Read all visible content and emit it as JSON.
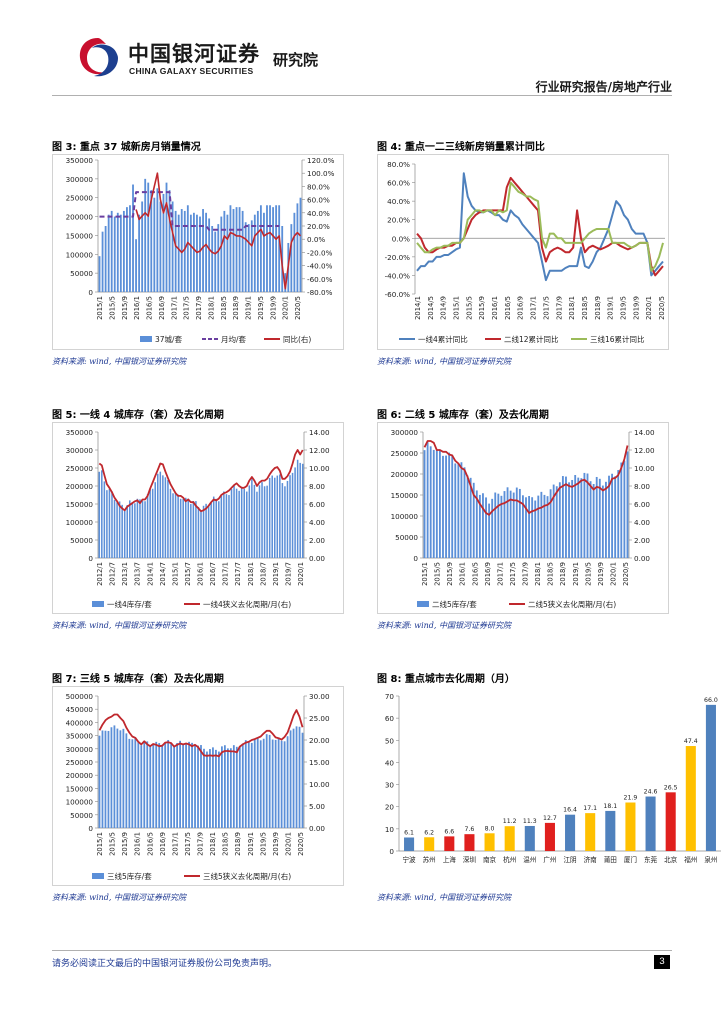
{
  "header": {
    "logo_cn": "中国银河证券",
    "logo_en": "CHINA GALAXY SECURITIES",
    "institute": "研究院",
    "report_type": "行业研究报告/房地产行业"
  },
  "figures": {
    "fig3": {
      "title": "图 3: 重点 37 城新房月销量情况",
      "source": "资料来源: wind, 中国银河证券研究院"
    },
    "fig4": {
      "title": "图 4: 重点一二三线新房销量累计同比",
      "source": "资料来源: wind, 中国银河证券研究院"
    },
    "fig5": {
      "title": "图 5: 一线 4 城库存（套）及去化周期",
      "source": "资料来源: wind, 中国银河证券研究院"
    },
    "fig6": {
      "title": "图 6: 二线 5 城库存（套）及去化周期",
      "source": "资料来源: wind, 中国银河证券研究院"
    },
    "fig7": {
      "title": "图 7: 三线 5 城库存（套）及去化周期",
      "source": "资料来源: wind, 中国银河证券研究院"
    },
    "fig8": {
      "title": "图 8: 重点城市去化周期（月）",
      "source": "资料来源: wind, 中国银河证券研究院"
    }
  },
  "footer": {
    "disclaimer": "请务必阅读正文最后的中国银河证券股份公司免责声明。",
    "page_number": "3"
  },
  "colors": {
    "bar_blue": "#5b8fd8",
    "line_red": "#c0282d",
    "purple": "#6a3fa0",
    "green": "#9bbb59",
    "yellow": "#ffc000",
    "red": "#e0201e",
    "mid_blue": "#4f81bd"
  },
  "chart_data": [
    {
      "id": "fig3",
      "type": "bar+line",
      "categories_label": [
        "2015/1",
        "2015/5",
        "2015/9",
        "2016/1",
        "2016/5",
        "2016/9",
        "2017/1",
        "2017/5",
        "2017/9",
        "2018/1",
        "2018/5",
        "2018/9",
        "2019/1",
        "2019/5",
        "2019/9",
        "2020/1",
        "2020/5"
      ],
      "y_left": {
        "ticks": [
          "0",
          "50000",
          "100000",
          "150000",
          "200000",
          "250000",
          "300000",
          "350000"
        ],
        "range": [
          0,
          350000
        ]
      },
      "y_right": {
        "ticks": [
          "-80.0%",
          "-60.0%",
          "-40.0%",
          "-20.0%",
          "0.0%",
          "20.0%",
          "40.0%",
          "60.0%",
          "80.0%",
          "100.0%",
          "120.0%"
        ],
        "range": [
          -80,
          120
        ]
      },
      "series": [
        {
          "name": "37城/套",
          "kind": "bar",
          "axis": "left",
          "values": [
            95000,
            160000,
            175000,
            205000,
            215000,
            200000,
            210000,
            205000,
            215000,
            225000,
            230000,
            285000,
            140000,
            205000,
            240000,
            300000,
            290000,
            270000,
            250000,
            275000,
            240000,
            260000,
            290000,
            270000,
            240000,
            215000,
            205000,
            220000,
            215000,
            230000,
            205000,
            210000,
            205000,
            200000,
            220000,
            210000,
            195000,
            175000,
            160000,
            180000,
            200000,
            215000,
            205000,
            230000,
            220000,
            225000,
            225000,
            215000,
            185000,
            180000,
            190000,
            205000,
            215000,
            230000,
            210000,
            230000,
            230000,
            225000,
            230000,
            230000,
            175000,
            50000,
            130000,
            180000,
            210000,
            235000,
            250000
          ]
        },
        {
          "name": "月均/套",
          "kind": "step",
          "axis": "left",
          "values": [
            200000,
            200000,
            200000,
            200000,
            200000,
            200000,
            200000,
            200000,
            200000,
            200000,
            200000,
            200000,
            265000,
            265000,
            265000,
            265000,
            265000,
            265000,
            265000,
            265000,
            265000,
            265000,
            265000,
            265000,
            175000,
            175000,
            175000,
            175000,
            175000,
            175000,
            175000,
            175000,
            175000,
            175000,
            175000,
            175000,
            165000,
            165000,
            165000,
            165000,
            165000,
            165000,
            165000,
            165000,
            165000,
            165000,
            165000,
            165000,
            175000,
            175000,
            175000,
            175000,
            175000,
            175000,
            175000,
            175000,
            175000,
            175000,
            175000,
            175000,
            null,
            null,
            null,
            null,
            null,
            null,
            null
          ]
        },
        {
          "name": "同比(右)",
          "kind": "line",
          "axis": "right",
          "values": [
            null,
            null,
            null,
            null,
            null,
            null,
            null,
            null,
            null,
            null,
            null,
            null,
            45,
            30,
            35,
            40,
            35,
            60,
            80,
            100,
            60,
            40,
            55,
            30,
            10,
            -10,
            -15,
            -20,
            -15,
            -5,
            -10,
            -15,
            -20,
            -18,
            -12,
            -8,
            -15,
            -20,
            -22,
            -18,
            -10,
            5,
            0,
            10,
            8,
            5,
            5,
            3,
            0,
            -5,
            -10,
            5,
            10,
            15,
            5,
            8,
            10,
            5,
            0,
            5,
            -40,
            -75,
            -40,
            -5,
            5,
            10,
            5
          ]
        }
      ]
    },
    {
      "id": "fig4",
      "type": "line",
      "categories_label": [
        "2014/1",
        "2014/5",
        "2014/9",
        "2015/1",
        "2015/5",
        "2015/9",
        "2016/1",
        "2016/5",
        "2016/9",
        "2017/1",
        "2017/5",
        "2017/9",
        "2018/1",
        "2018/5",
        "2018/9",
        "2019/1",
        "2019/5",
        "2019/9",
        "2020/1",
        "2020/5"
      ],
      "y": {
        "ticks": [
          "-60.0%",
          "-40.0%",
          "-20.0%",
          "0.0%",
          "20.0%",
          "40.0%",
          "60.0%",
          "80.0%"
        ],
        "range": [
          -60,
          80
        ]
      },
      "series": [
        {
          "name": "一线4累计同比",
          "values": [
            -35,
            -30,
            -30,
            -25,
            -25,
            -20,
            -20,
            -18,
            -18,
            -15,
            -12,
            -10,
            70,
            45,
            35,
            30,
            28,
            28,
            30,
            28,
            25,
            25,
            20,
            18,
            30,
            25,
            22,
            15,
            10,
            5,
            0,
            -5,
            -25,
            -45,
            -35,
            -35,
            -35,
            -35,
            -32,
            -30,
            -30,
            -30,
            -10,
            -30,
            -32,
            -25,
            -15,
            -10,
            0,
            10,
            25,
            40,
            35,
            25,
            20,
            10,
            5,
            5,
            5,
            -5,
            -40,
            -35,
            -30,
            -25
          ]
        },
        {
          "name": "二线12累计同比",
          "values": [
            5,
            0,
            -10,
            -15,
            -15,
            -12,
            -10,
            -10,
            -8,
            -8,
            -5,
            -5,
            0,
            10,
            20,
            25,
            28,
            30,
            30,
            30,
            30,
            30,
            30,
            55,
            65,
            60,
            55,
            50,
            45,
            40,
            35,
            30,
            -10,
            -25,
            -15,
            -12,
            -10,
            -12,
            -15,
            -15,
            -10,
            30,
            0,
            -15,
            -10,
            -8,
            -10,
            -12,
            -10,
            -8,
            -5,
            -5,
            -8,
            -10,
            -12,
            -10,
            -8,
            -5,
            -5,
            -5,
            -30,
            -40,
            -35,
            -30
          ]
        },
        {
          "name": "三线16累计同比",
          "values": [
            -5,
            -10,
            -15,
            -15,
            -12,
            -10,
            -10,
            -8,
            -8,
            -5,
            -5,
            -5,
            0,
            20,
            25,
            30,
            30,
            28,
            30,
            30,
            25,
            30,
            28,
            30,
            60,
            55,
            50,
            48,
            45,
            45,
            42,
            40,
            0,
            -10,
            5,
            5,
            0,
            0,
            -5,
            -5,
            -5,
            -5,
            -5,
            0,
            5,
            8,
            10,
            10,
            10,
            10,
            -5,
            -5,
            -5,
            -5,
            -8,
            -10,
            -8,
            -5,
            -5,
            -5,
            -35,
            -30,
            -20,
            -5
          ]
        }
      ]
    },
    {
      "id": "fig5",
      "type": "bar+line",
      "categories_label": [
        "2012/1",
        "2012/7",
        "2013/1",
        "2013/7",
        "2014/1",
        "2014/7",
        "2015/1",
        "2015/7",
        "2016/1",
        "2016/7",
        "2017/1",
        "2017/7",
        "2018/1",
        "2018/7",
        "2019/1",
        "2019/7",
        "2020/1"
      ],
      "y_left": {
        "ticks": [
          "0",
          "50000",
          "100000",
          "150000",
          "200000",
          "250000",
          "300000",
          "350000"
        ],
        "range": [
          0,
          350000
        ]
      },
      "y_right": {
        "ticks": [
          "0.00",
          "2.00",
          "4.00",
          "6.00",
          "8.00",
          "10.00",
          "12.00",
          "14.00"
        ],
        "range": [
          0,
          14
        ]
      },
      "series": [
        {
          "name": "一线4库存/套",
          "kind": "bar",
          "axis": "left"
        },
        {
          "name": "一线4狭义去化周期/月(右)",
          "kind": "line",
          "axis": "right",
          "values": [
            10.5,
            10.3,
            9.2,
            8.2,
            7.8,
            7.3,
            6.7,
            6.3,
            5.8,
            5.5,
            5.3,
            5.7,
            5.9,
            6.1,
            6.3,
            6.4,
            6.1,
            6.5,
            6.5,
            6.9,
            7.7,
            8.4,
            9.1,
            9.8,
            10.5,
            10.4,
            9.6,
            8.9,
            8.2,
            7.7,
            7.2,
            6.9,
            6.9,
            6.7,
            6.3,
            6.5,
            6.2,
            6.2,
            5.8,
            5.5,
            5.2,
            5.3,
            5.5,
            5.8,
            6.2,
            6.5,
            6.4,
            6.6,
            7.0,
            7.2,
            7.3,
            7.5,
            7.8,
            8.1,
            8.3,
            8.0,
            7.8,
            7.8,
            8.0,
            8.6,
            9.0,
            8.6,
            8.0,
            8.4,
            8.6,
            8.6,
            8.8,
            9.3,
            9.7,
            10.0,
            10.1,
            9.7,
            8.8,
            8.8,
            9.1,
            9.6,
            10.5,
            11.5,
            12.0,
            11.5,
            12.0
          ]
        }
      ]
    },
    {
      "id": "fig6",
      "type": "bar+line",
      "categories_label": [
        "2015/1",
        "2015/5",
        "2015/9",
        "2016/1",
        "2016/5",
        "2016/9",
        "2017/1",
        "2017/5",
        "2017/9",
        "2018/1",
        "2018/5",
        "2018/9",
        "2019/1",
        "2019/5",
        "2019/9",
        "2020/1",
        "2020/5"
      ],
      "y_left": {
        "ticks": [
          "0",
          "50000",
          "100000",
          "150000",
          "200000",
          "250000",
          "300000"
        ],
        "range": [
          0,
          300000
        ]
      },
      "y_right": {
        "ticks": [
          "0.00",
          "2.00",
          "4.00",
          "6.00",
          "8.00",
          "10.00",
          "12.00",
          "14.00"
        ],
        "range": [
          0,
          14
        ]
      },
      "series": [
        {
          "name": "二线5库存/套",
          "kind": "bar",
          "axis": "left"
        },
        {
          "name": "二线5狭义去化周期/月(右)",
          "kind": "line",
          "axis": "right",
          "values": [
            12.3,
            13.0,
            13.0,
            12.8,
            12.0,
            12.0,
            11.8,
            11.8,
            11.5,
            11.4,
            10.8,
            10.5,
            10.0,
            9.8,
            9.0,
            8.0,
            7.0,
            6.6,
            6.0,
            5.5,
            5.0,
            4.8,
            5.2,
            5.5,
            5.8,
            6.0,
            6.1,
            6.3,
            6.5,
            6.4,
            6.4,
            6.2,
            6.0,
            5.5,
            5.0,
            5.2,
            5.3,
            5.5,
            5.6,
            5.8,
            5.9,
            6.2,
            6.8,
            7.3,
            7.8,
            8.0,
            8.2,
            8.0,
            7.9,
            8.1,
            8.3,
            8.6,
            8.7,
            8.4,
            8.0,
            7.6,
            7.9,
            7.8,
            7.5,
            7.7,
            8.0,
            8.8,
            8.9,
            9.2,
            10.0,
            11.0,
            12.5
          ]
        }
      ]
    },
    {
      "id": "fig7",
      "type": "bar+line",
      "categories_label": [
        "2015/1",
        "2015/5",
        "2015/9",
        "2016/1",
        "2016/5",
        "2016/9",
        "2017/1",
        "2017/5",
        "2017/9",
        "2018/1",
        "2018/5",
        "2018/9",
        "2019/1",
        "2019/5",
        "2019/9",
        "2020/1",
        "2020/5"
      ],
      "y_left": {
        "ticks": [
          "0",
          "50000",
          "100000",
          "150000",
          "200000",
          "250000",
          "300000",
          "350000",
          "400000",
          "450000",
          "500000"
        ],
        "range": [
          0,
          500000
        ]
      },
      "y_right": {
        "ticks": [
          "0.00",
          "5.00",
          "10.00",
          "15.00",
          "20.00",
          "25.00",
          "30.00"
        ],
        "range": [
          0,
          30
        ]
      },
      "series": [
        {
          "name": "三线5库存/套",
          "kind": "bar",
          "axis": "left"
        },
        {
          "name": "三线5狭义去化周期/月(右)",
          "kind": "line",
          "axis": "right",
          "values": [
            22.2,
            23.5,
            24.5,
            25.0,
            25.3,
            25.8,
            25.8,
            25.0,
            24.3,
            22.8,
            21.7,
            20.8,
            20.5,
            19.6,
            19.0,
            19.7,
            19.0,
            18.6,
            19.1,
            18.9,
            18.6,
            18.7,
            19.4,
            19.5,
            19.3,
            18.5,
            18.9,
            19.2,
            19.0,
            19.2,
            19.0,
            18.6,
            18.9,
            18.4,
            17.4,
            16.5,
            16.4,
            16.5,
            16.4,
            16.5,
            16.3,
            17.2,
            17.5,
            17.5,
            17.4,
            17.4,
            17.2,
            18.5,
            19.0,
            19.4,
            19.6,
            20.0,
            20.2,
            20.5,
            20.8,
            21.5,
            22.1,
            22.1,
            21.4,
            20.6,
            20.4,
            20.1,
            20.7,
            21.7,
            23.6,
            25.6,
            26.8,
            25.3,
            22.9
          ]
        }
      ]
    },
    {
      "id": "fig8",
      "type": "bar",
      "y": {
        "ticks": [
          "0",
          "10",
          "20",
          "30",
          "40",
          "50",
          "60",
          "70"
        ],
        "range": [
          0,
          70
        ]
      },
      "categories": [
        "宁波",
        "苏州",
        "上海",
        "深圳",
        "南京",
        "杭州",
        "温州",
        "广州",
        "江阴",
        "济南",
        "莆田",
        "厦门",
        "东莞",
        "北京",
        "福州",
        "泉州"
      ],
      "values": [
        6.1,
        6.2,
        6.6,
        7.6,
        8.0,
        11.2,
        11.3,
        12.7,
        16.4,
        17.1,
        18.1,
        21.9,
        24.6,
        26.5,
        47.4,
        66.0
      ],
      "value_labels": [
        "6.1",
        "6.2",
        "6.6",
        "7.6",
        "8.0",
        "11.2",
        "11.3",
        "12.7",
        "16.4",
        "17.1",
        "18.1",
        "21.9",
        "24.6",
        "26.5",
        "47.4",
        "66.0"
      ],
      "bar_colors": [
        "#4f81bd",
        "#ffc000",
        "#e0201e",
        "#e0201e",
        "#ffc000",
        "#ffc000",
        "#4f81bd",
        "#e0201e",
        "#4f81bd",
        "#ffc000",
        "#4f81bd",
        "#ffc000",
        "#4f81bd",
        "#e0201e",
        "#ffc000",
        "#4f81bd"
      ]
    }
  ]
}
